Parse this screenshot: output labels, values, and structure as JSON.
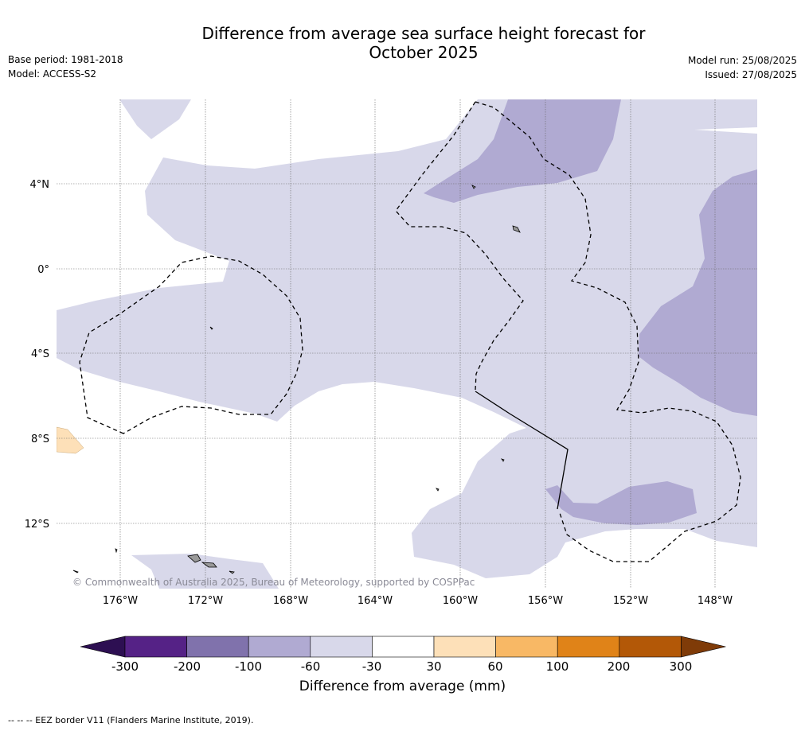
{
  "title": "Difference from average sea surface height forecast for\nOctober 2025",
  "meta_left": [
    "Base period: 1981-2018",
    "Model: ACCESS-S2"
  ],
  "meta_right": [
    "Model run: 25/08/2025",
    "Issued: 27/08/2025"
  ],
  "map": {
    "lat_labels": [
      "4°N",
      "0°",
      "4°S",
      "8°S",
      "12°S"
    ],
    "lon_labels": [
      "176°W",
      "172°W",
      "168°W",
      "164°W",
      "160°W",
      "156°W",
      "152°W",
      "148°W"
    ],
    "copyright": "© Commonwealth of Australia 2025, Bureau of Meteorology, supported by COSPPac",
    "colors": {
      "band_-60_-30": "#d8d8ea",
      "band_-100_-60": "#b0aad2",
      "band_30_60": "#fde0b8"
    }
  },
  "colorbar": {
    "ticks": [
      "-300",
      "-200",
      "-100",
      "-60",
      "-30",
      "30",
      "60",
      "100",
      "200",
      "300"
    ],
    "colors": [
      "#2d0f52",
      "#552286",
      "#8072ac",
      "#b0aad2",
      "#d8d8ea",
      "#ffffff",
      "#fde0b8",
      "#f8b865",
      "#e08318",
      "#b35807",
      "#7f3b08"
    ],
    "label": "Difference from average (mm)"
  },
  "footnote": "--  --  -- EEZ border V11 (Flanders Marine Institute, 2019)."
}
